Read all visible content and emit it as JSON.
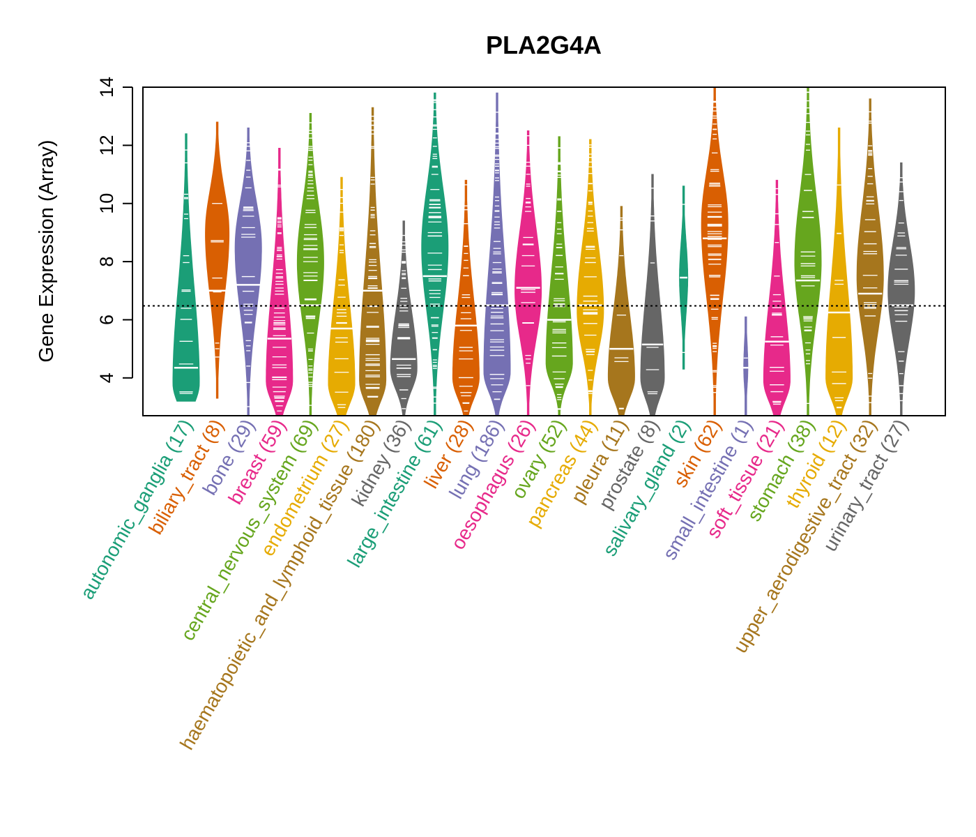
{
  "chart_data": {
    "type": "violin",
    "title": "PLA2G4A",
    "xlabel": "",
    "ylabel": "Gene Expression (Array)",
    "ylim": [
      2.7,
      14.0
    ],
    "yticks": [
      4,
      6,
      8,
      10,
      12,
      14
    ],
    "reference_line": 6.48,
    "categories": [
      {
        "name": "autonomic_ganglia",
        "n": 17,
        "label": "autonomic_ganglia (17)",
        "color": "#1B9E77",
        "min": 3.2,
        "max": 12.4,
        "median": 4.35,
        "mode": 3.8
      },
      {
        "name": "biliary_tract",
        "n": 8,
        "label": "biliary_tract (8)",
        "color": "#D95F02",
        "min": 3.3,
        "max": 12.8,
        "median": 7.0,
        "mode": 9.0
      },
      {
        "name": "bone",
        "n": 29,
        "label": "bone (29)",
        "color": "#7570B3",
        "min": 2.7,
        "max": 12.6,
        "median": 7.2,
        "mode": 8.5
      },
      {
        "name": "breast",
        "n": 59,
        "label": "breast (59)",
        "color": "#E7298A",
        "min": 2.7,
        "max": 11.9,
        "median": 5.35,
        "mode": 3.9
      },
      {
        "name": "central_nervous_system",
        "n": 69,
        "label": "central_nervous_system (69)",
        "color": "#66A61E",
        "min": 2.7,
        "max": 13.1,
        "median": 6.5,
        "mode": 8.0
      },
      {
        "name": "endometrium",
        "n": 27,
        "label": "endometrium (27)",
        "color": "#E6AB02",
        "min": 2.7,
        "max": 10.9,
        "median": 5.7,
        "mode": 3.8
      },
      {
        "name": "haematopoietic_and_lymphoid_tissue",
        "n": 180,
        "label": "haematopoietic_and_lymphoid_tissue (180)",
        "color": "#A6761D",
        "min": 2.7,
        "max": 13.3,
        "median": 7.0,
        "mode": 3.9
      },
      {
        "name": "kidney",
        "n": 36,
        "label": "kidney (36)",
        "color": "#666666",
        "min": 2.7,
        "max": 9.4,
        "median": 4.65,
        "mode": 4.3
      },
      {
        "name": "large_intestine",
        "n": 61,
        "label": "large_intestine (61)",
        "color": "#1B9E77",
        "min": 2.7,
        "max": 13.8,
        "median": 7.5,
        "mode": 8.5
      },
      {
        "name": "liver",
        "n": 28,
        "label": "liver (28)",
        "color": "#D95F02",
        "min": 2.7,
        "max": 10.8,
        "median": 5.8,
        "mode": 4.0
      },
      {
        "name": "lung",
        "n": 186,
        "label": "lung (186)",
        "color": "#7570B3",
        "min": 2.7,
        "max": 13.8,
        "median": 6.5,
        "mode": 4.2
      },
      {
        "name": "oesophagus",
        "n": 26,
        "label": "oesophagus (26)",
        "color": "#E7298A",
        "min": 2.7,
        "max": 12.5,
        "median": 7.1,
        "mode": 7.0
      },
      {
        "name": "ovary",
        "n": 52,
        "label": "ovary (52)",
        "color": "#66A61E",
        "min": 2.7,
        "max": 12.3,
        "median": 6.0,
        "mode": 4.5
      },
      {
        "name": "pancreas",
        "n": 44,
        "label": "pancreas (44)",
        "color": "#E6AB02",
        "min": 2.7,
        "max": 12.2,
        "median": 6.5,
        "mode": 6.3
      },
      {
        "name": "pleura",
        "n": 11,
        "label": "pleura (11)",
        "color": "#A6761D",
        "min": 2.7,
        "max": 9.9,
        "median": 5.0,
        "mode": 4.0
      },
      {
        "name": "prostate",
        "n": 8,
        "label": "prostate (8)",
        "color": "#666666",
        "min": 2.7,
        "max": 11.0,
        "median": 5.15,
        "mode": 4.0
      },
      {
        "name": "salivary_gland",
        "n": 2,
        "label": "salivary_gland (2)",
        "color": "#1B9E77",
        "min": 4.3,
        "max": 10.6,
        "median": 7.45,
        "mode": 7.45
      },
      {
        "name": "skin",
        "n": 62,
        "label": "skin (62)",
        "color": "#D95F02",
        "min": 2.7,
        "max": 14.0,
        "median": 8.8,
        "mode": 9.3
      },
      {
        "name": "small_intestine",
        "n": 1,
        "label": "small_intestine (1)",
        "color": "#7570B3",
        "min": 2.7,
        "max": 6.1,
        "median": 4.35,
        "mode": 4.35
      },
      {
        "name": "soft_tissue",
        "n": 21,
        "label": "soft_tissue (21)",
        "color": "#E7298A",
        "min": 2.7,
        "max": 10.8,
        "median": 5.25,
        "mode": 3.9
      },
      {
        "name": "stomach",
        "n": 38,
        "label": "stomach (38)",
        "color": "#66A61E",
        "min": 2.7,
        "max": 14.0,
        "median": 7.35,
        "mode": 8.0
      },
      {
        "name": "thyroid",
        "n": 12,
        "label": "thyroid (12)",
        "color": "#E6AB02",
        "min": 2.7,
        "max": 12.6,
        "median": 6.25,
        "mode": 4.0
      },
      {
        "name": "upper_aerodigestive_tract",
        "n": 32,
        "label": "upper_aerodigestive_tract (32)",
        "color": "#A6761D",
        "min": 2.7,
        "max": 13.6,
        "median": 6.9,
        "mode": 7.5
      },
      {
        "name": "urinary_tract",
        "n": 27,
        "label": "urinary_tract (27)",
        "color": "#666666",
        "min": 2.7,
        "max": 11.4,
        "median": 6.5,
        "mode": 7.0
      }
    ]
  }
}
